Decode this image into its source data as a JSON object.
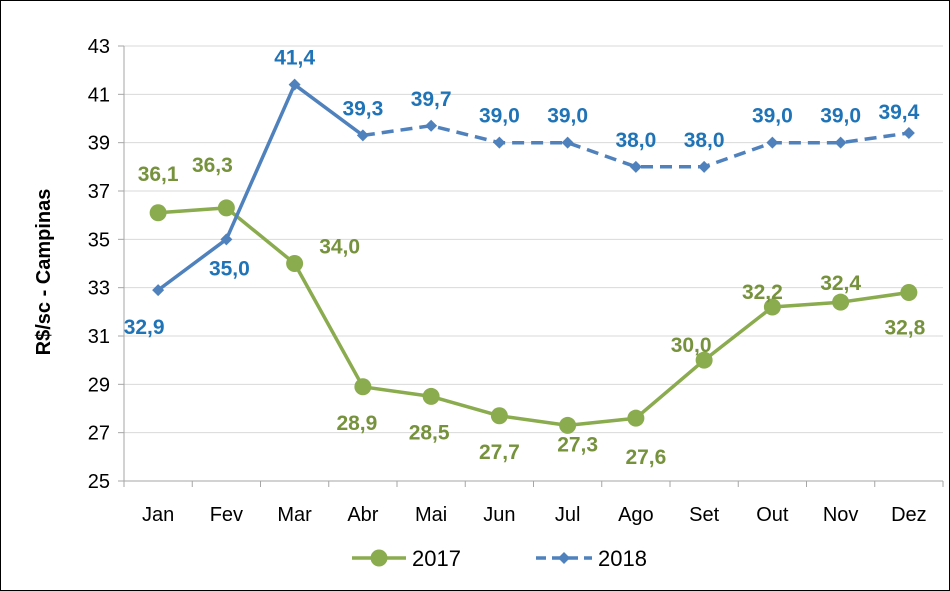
{
  "chart_data": {
    "type": "line",
    "title": "",
    "xlabel": "",
    "ylabel": "R$/sc - Campinas",
    "ylim": [
      25,
      43
    ],
    "yticks": [
      25,
      27,
      29,
      31,
      33,
      35,
      37,
      39,
      41,
      43
    ],
    "grid": "horizontal",
    "legend_position": "bottom",
    "categories": [
      "Jan",
      "Fev",
      "Mar",
      "Abr",
      "Mai",
      "Jun",
      "Jul",
      "Ago",
      "Set",
      "Out",
      "Nov",
      "Dez"
    ],
    "series": [
      {
        "name": "2017",
        "color": "#8aab4e",
        "marker": "circle",
        "line_style": "solid",
        "values": [
          36.1,
          36.3,
          34.0,
          28.9,
          28.5,
          27.7,
          27.3,
          27.6,
          30.0,
          32.2,
          32.4,
          32.8
        ],
        "labels": [
          "36,1",
          "36,3",
          "34,0",
          "28,9",
          "28,5",
          "27,7",
          "27,3",
          "27,6",
          "30,0",
          "32,2",
          "32,4",
          "32,8"
        ],
        "label_color": "#76923c"
      },
      {
        "name": "2018",
        "color": "#4f81bd",
        "marker": "diamond",
        "line_style": "solid-then-dashed",
        "dashed_from_index": 3,
        "values": [
          32.9,
          35.0,
          41.4,
          39.3,
          39.7,
          39.0,
          39.0,
          38.0,
          38.0,
          39.0,
          39.0,
          39.4
        ],
        "labels": [
          "32,9",
          "35,0",
          "41,4",
          "39,3",
          "39,7",
          "39,0",
          "39,0",
          "38,0",
          "38,0",
          "39,0",
          "39,0",
          "39,4"
        ],
        "label_color": "#1f73b7"
      }
    ]
  }
}
